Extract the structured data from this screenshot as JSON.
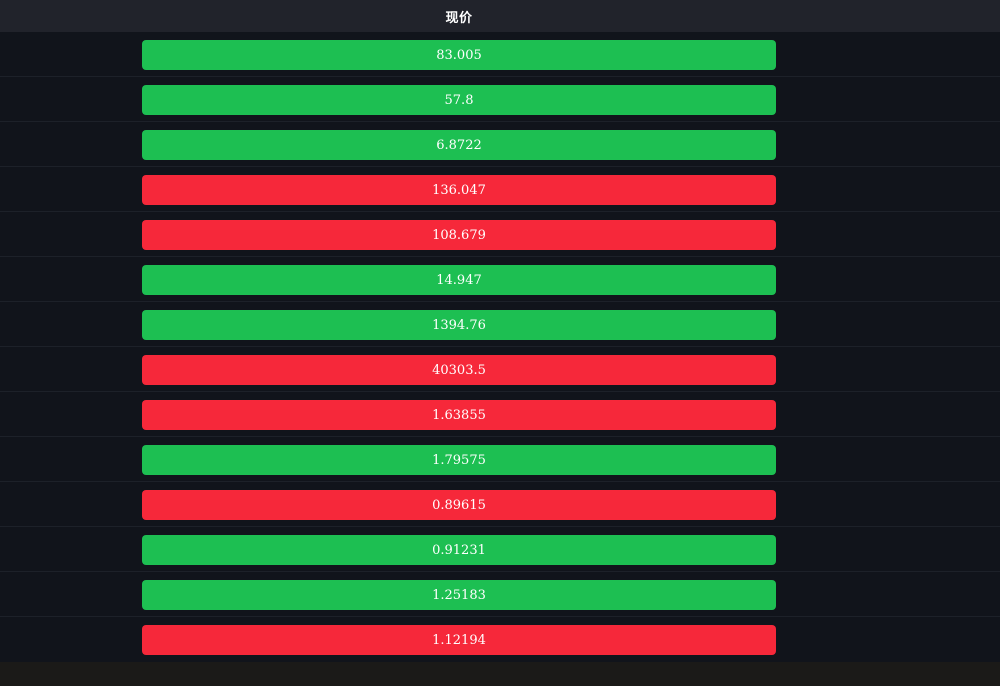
{
  "header": {
    "price_label": "现价"
  },
  "colors": {
    "up": "#1dbf52",
    "down": "#f6283a",
    "row_bg": "#11141b",
    "header_bg": "#21232b"
  },
  "rows": [
    {
      "price": "83.005",
      "direction": "up"
    },
    {
      "price": "57.8",
      "direction": "up"
    },
    {
      "price": "6.8722",
      "direction": "up"
    },
    {
      "price": "136.047",
      "direction": "down"
    },
    {
      "price": "108.679",
      "direction": "down"
    },
    {
      "price": "14.947",
      "direction": "up"
    },
    {
      "price": "1394.76",
      "direction": "up"
    },
    {
      "price": "40303.5",
      "direction": "down"
    },
    {
      "price": "1.63855",
      "direction": "down"
    },
    {
      "price": "1.79575",
      "direction": "up"
    },
    {
      "price": "0.89615",
      "direction": "down"
    },
    {
      "price": "0.91231",
      "direction": "up"
    },
    {
      "price": "1.25183",
      "direction": "up"
    },
    {
      "price": "1.12194",
      "direction": "down"
    }
  ]
}
